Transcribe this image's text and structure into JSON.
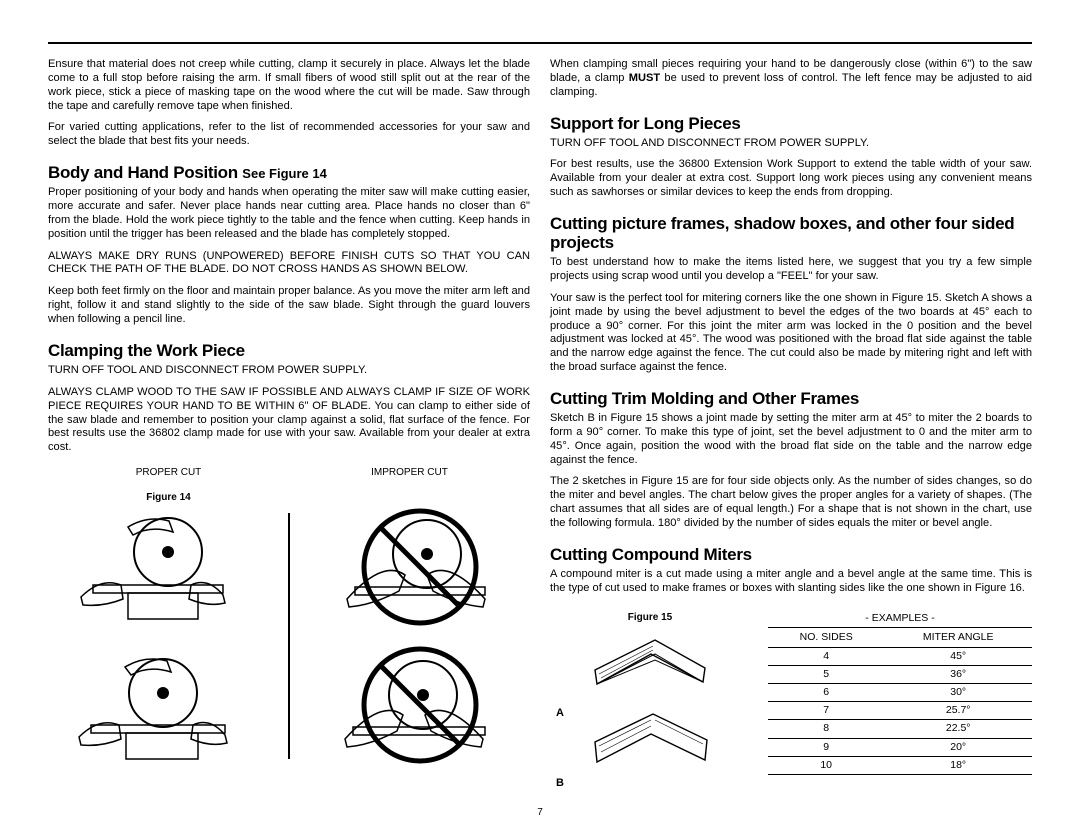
{
  "colors": {
    "text": "#000000",
    "bg": "#ffffff",
    "rule": "#000000"
  },
  "typography": {
    "body_pt": 8.3,
    "heading_pt": 13,
    "heading_font": "Arial Black",
    "body_font": "Arial",
    "line_height": 1.25
  },
  "page_number": "7",
  "left": {
    "p1": "Ensure that material does not creep while cutting, clamp it securely in place. Always let the blade come to a full stop before raising the arm. If small fibers of wood still split out at the rear of the work piece, stick a piece of masking tape on the wood where the cut will be made. Saw through the tape and carefully remove tape when finished.",
    "p2": "For varied cutting applications, refer to the list of recommended accessories for your saw and select the blade that best fits your needs.",
    "h1": "Body and Hand Position",
    "h1_suffix": "See Figure 14",
    "p3": "Proper positioning of your body and hands when operating the miter saw will make cutting easier, more accurate and safer. Never place hands near cutting area. Place hands no closer than 6\" from the blade. Hold the work piece tightly to the table and the fence when cutting. Keep hands in position until the trigger has been released and the blade has completely stopped.",
    "p4": "ALWAYS MAKE DRY RUNS (UNPOWERED) BEFORE FINISH CUTS SO THAT YOU CAN CHECK THE PATH OF THE BLADE. DO NOT CROSS HANDS AS SHOWN BELOW.",
    "p5": "Keep both feet firmly on the floor and maintain proper balance. As you move the miter arm left and right, follow it and stand slightly to the side of the saw blade. Sight through the guard louvers when following a pencil line.",
    "h2": "Clamping the Work Piece",
    "p6": "TURN OFF TOOL AND DISCONNECT FROM POWER SUPPLY.",
    "p7": "ALWAYS CLAMP WOOD TO THE SAW IF POSSIBLE AND ALWAYS CLAMP IF SIZE OF WORK PIECE REQUIRES YOUR HAND TO BE WITHIN 6\" OF BLADE. You  can clamp to either side of the saw blade and remember to position your clamp against a solid, flat surface of the fence. For best results use the 36802 clamp made for use with your saw. Available from your dealer at extra cost.",
    "caption_proper": "PROPER CUT",
    "caption_improper": "IMPROPER CUT",
    "figure14_label": "Figure 14"
  },
  "right": {
    "p1a": "When clamping small pieces requiring your hand to be dangerously close (within 6\") to the saw blade, a clamp ",
    "must": "MUST",
    "p1b": " be used to prevent loss of control. The left fence may be adjusted to aid clamping.",
    "h1": "Support for Long Pieces",
    "p2": "TURN OFF TOOL AND DISCONNECT FROM POWER SUPPLY.",
    "p3": "For best results, use the 36800 Extension Work Support to extend the table width of your saw. Available from your dealer at extra cost. Support long work pieces using any convenient means such as sawhorses or similar devices to keep the ends from dropping.",
    "h2": "Cutting picture frames, shadow boxes, and other four sided projects",
    "p4": "To best understand how to make the items listed here, we suggest that you try a few simple projects using scrap wood until you develop a \"FEEL\" for your saw.",
    "p5": "Your saw is the perfect tool for mitering corners like the one shown in Figure 15. Sketch A shows a joint made by using the bevel adjustment to bevel the edges of the two boards at 45° each to produce a 90° corner. For this joint the miter arm was locked in the 0 position and the bevel adjustment was locked at 45°. The wood was positioned with the broad flat side against the table and the narrow edge against the fence. The cut could also be made by mitering right and left with the broad surface against the fence.",
    "h3": "Cutting Trim Molding and Other Frames",
    "p6": "Sketch B in Figure 15 shows a joint made by setting the miter arm at 45° to miter the 2 boards to form a 90° corner. To make this type of joint, set the bevel adjustment to 0 and the miter arm to 45°. Once again, position the wood with the broad flat side on the table and the narrow edge against the fence.",
    "p7": "The 2 sketches in Figure 15 are for four side objects only. As the number of sides changes, so do the miter and bevel angles. The chart below gives the proper angles for a variety of shapes. (The chart assumes that all sides are of equal length.) For a shape that is not shown in the chart, use the following formula. 180° divided by the number of sides equals the miter or bevel angle.",
    "h4": "Cutting Compound Miters",
    "p8": "A compound miter is a cut made using a miter angle and a bevel angle at the same time. This is the type of cut used to make frames or boxes with slanting sides like the one shown in Figure 16.",
    "figure15_label": "Figure 15",
    "sketchA": "A",
    "sketchB": "B",
    "examples_label": "- EXAMPLES -",
    "table": {
      "headers": [
        "NO. SIDES",
        "MITER ANGLE"
      ],
      "rows": [
        [
          "4",
          "45°"
        ],
        [
          "5",
          "36°"
        ],
        [
          "6",
          "30°"
        ],
        [
          "7",
          "25.7°"
        ],
        [
          "8",
          "22.5°"
        ],
        [
          "9",
          "20°"
        ],
        [
          "10",
          "18°"
        ]
      ]
    }
  }
}
